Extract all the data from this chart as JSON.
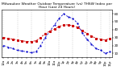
{
  "title": "Milwaukee Weather Outdoor Temperature (vs) THSW Index per Hour (Last 24 Hours)",
  "title_fontsize": 3.2,
  "background_color": "#ffffff",
  "plot_bg_color": "#ffffff",
  "grid_color": "#aaaaaa",
  "hours": [
    0,
    1,
    2,
    3,
    4,
    5,
    6,
    7,
    8,
    9,
    10,
    11,
    12,
    13,
    14,
    15,
    16,
    17,
    18,
    19,
    20,
    21,
    22,
    23
  ],
  "temp": [
    30,
    29,
    28,
    27,
    26,
    25,
    25,
    26,
    30,
    35,
    38,
    41,
    44,
    46,
    46,
    45,
    43,
    39,
    35,
    32,
    29,
    28,
    27,
    29
  ],
  "thsw": [
    20,
    18,
    16,
    14,
    13,
    12,
    11,
    12,
    20,
    30,
    38,
    46,
    54,
    60,
    56,
    54,
    48,
    36,
    28,
    22,
    16,
    14,
    10,
    12
  ],
  "temp_color": "#cc0000",
  "thsw_color": "#0000cc",
  "ylim_min": 5,
  "ylim_max": 65,
  "ytick_vals": [
    10,
    20,
    30,
    40,
    50,
    60
  ],
  "ytick_labels": [
    "10",
    "20",
    "30",
    "40",
    "50",
    "60"
  ],
  "ylabel_fontsize": 3.0,
  "xlabel_fontsize": 2.8,
  "line_lw": 0.6,
  "marker_size": 1.2,
  "grid_lw": 0.3,
  "grid_positions": [
    0,
    3,
    6,
    9,
    12,
    15,
    18,
    21,
    23
  ]
}
